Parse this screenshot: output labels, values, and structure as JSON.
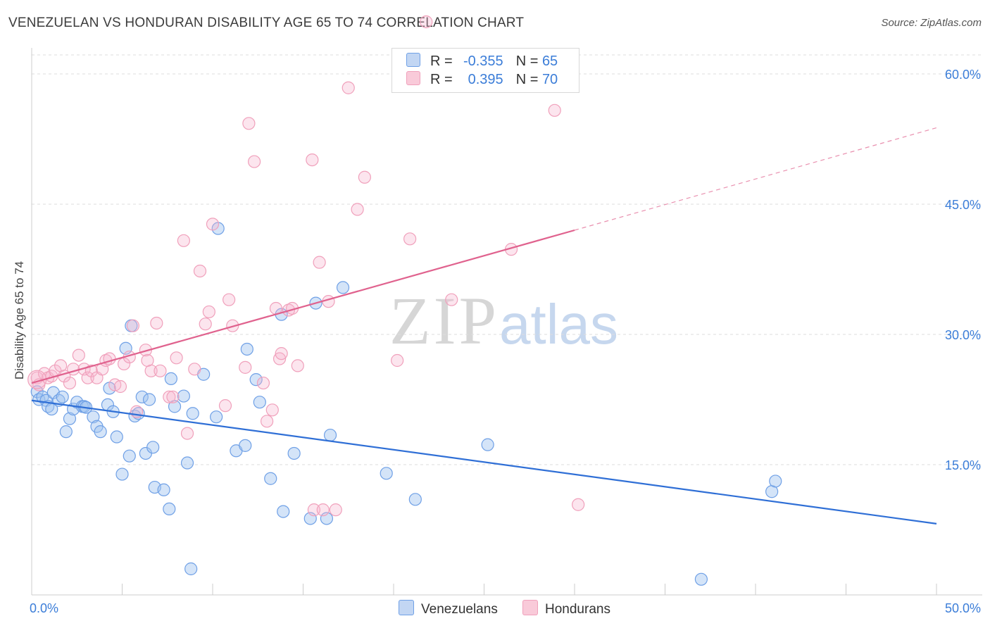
{
  "title": "VENEZUELAN VS HONDURAN DISABILITY AGE 65 TO 74 CORRELATION CHART",
  "source": "Source: ZipAtlas.com",
  "watermark": {
    "zip": "ZIP",
    "atlas": "atlas"
  },
  "legend": {
    "rows": [
      {
        "r_label": "R =",
        "r_value": "-0.355",
        "n_label": "N =",
        "n_value": "65"
      },
      {
        "r_label": "R =",
        "r_value": "0.395",
        "n_label": "N =",
        "n_value": "70"
      }
    ]
  },
  "bottom_legend": {
    "venezuelans": "Venezuelans",
    "hondurans": "Hondurans"
  },
  "chart_data": {
    "type": "scatter",
    "title": "VENEZUELAN VS HONDURAN DISABILITY AGE 65 TO 74 CORRELATION CHART",
    "xlabel": "",
    "ylabel": "Disability Age 65 to 74",
    "xlim": [
      0,
      50
    ],
    "ylim": [
      0,
      63
    ],
    "x_tick_labels": [
      "0.0%",
      "50.0%"
    ],
    "y_ticks": [
      15,
      30,
      45,
      60
    ],
    "y_tick_labels": [
      "15.0%",
      "30.0%",
      "45.0%",
      "60.0%"
    ],
    "grid": "horizontal dashed",
    "legend_position": "top-center",
    "colors": {
      "venezuelans": "#6fa0e6",
      "hondurans": "#f0a0bb",
      "blue_line": "#2f6fd6",
      "pink_line": "#e0628e"
    },
    "series": [
      {
        "name": "Venezuelans",
        "color": "#6fa0e6",
        "trend": {
          "x0": 0,
          "y0": 22.4,
          "x1": 50,
          "y1": 8.2
        },
        "points": [
          [
            0.3,
            23.4
          ],
          [
            0.4,
            22.5
          ],
          [
            0.6,
            22.8
          ],
          [
            0.8,
            22.4
          ],
          [
            0.9,
            21.7
          ],
          [
            1.1,
            21.4
          ],
          [
            1.2,
            23.3
          ],
          [
            1.5,
            22.4
          ],
          [
            1.7,
            22.8
          ],
          [
            1.9,
            18.8
          ],
          [
            2.1,
            20.3
          ],
          [
            2.3,
            21.4
          ],
          [
            2.5,
            22.2
          ],
          [
            2.8,
            21.7
          ],
          [
            2.9,
            21.7
          ],
          [
            3.4,
            20.5
          ],
          [
            3.6,
            19.4
          ],
          [
            3.8,
            18.8
          ],
          [
            4.2,
            21.9
          ],
          [
            4.3,
            23.8
          ],
          [
            4.5,
            21.1
          ],
          [
            4.7,
            18.2
          ],
          [
            5.0,
            13.9
          ],
          [
            5.2,
            28.4
          ],
          [
            5.4,
            16.0
          ],
          [
            5.5,
            31.0
          ],
          [
            5.7,
            20.6
          ],
          [
            5.9,
            20.9
          ],
          [
            6.1,
            22.8
          ],
          [
            6.3,
            16.3
          ],
          [
            6.5,
            22.5
          ],
          [
            6.7,
            17.0
          ],
          [
            6.8,
            12.4
          ],
          [
            7.3,
            12.1
          ],
          [
            7.6,
            9.9
          ],
          [
            7.7,
            24.9
          ],
          [
            7.9,
            21.7
          ],
          [
            8.4,
            22.9
          ],
          [
            8.6,
            15.2
          ],
          [
            8.8,
            3.0
          ],
          [
            8.9,
            20.9
          ],
          [
            9.5,
            25.4
          ],
          [
            10.3,
            42.2
          ],
          [
            10.2,
            20.5
          ],
          [
            11.3,
            16.6
          ],
          [
            11.8,
            17.2
          ],
          [
            11.9,
            28.3
          ],
          [
            12.4,
            24.8
          ],
          [
            12.6,
            22.2
          ],
          [
            13.2,
            13.4
          ],
          [
            13.8,
            32.3
          ],
          [
            13.9,
            9.6
          ],
          [
            14.5,
            16.3
          ],
          [
            15.4,
            8.8
          ],
          [
            15.7,
            33.6
          ],
          [
            16.3,
            8.8
          ],
          [
            16.5,
            18.4
          ],
          [
            17.2,
            35.4
          ],
          [
            19.6,
            14.0
          ],
          [
            21.2,
            11.0
          ],
          [
            25.2,
            17.3
          ],
          [
            37.0,
            1.8
          ],
          [
            40.9,
            11.9
          ],
          [
            41.1,
            13.1
          ],
          [
            3.0,
            21.6
          ]
        ]
      },
      {
        "name": "Hondurans",
        "color": "#f0a0bb",
        "trend": {
          "x0": 0,
          "y0": 24.4,
          "x1": 30,
          "y1": 42.0
        },
        "trend_dashed": {
          "x0": 30,
          "y0": 42.0,
          "x1": 50,
          "y1": 53.8
        },
        "points": [
          [
            0.3,
            25.0
          ],
          [
            0.4,
            24.2
          ],
          [
            0.7,
            25.5
          ],
          [
            0.9,
            25.0
          ],
          [
            1.1,
            25.2
          ],
          [
            1.3,
            25.8
          ],
          [
            1.6,
            26.4
          ],
          [
            1.8,
            25.2
          ],
          [
            2.1,
            24.4
          ],
          [
            2.3,
            26.0
          ],
          [
            2.6,
            27.6
          ],
          [
            2.9,
            26.0
          ],
          [
            3.1,
            25.0
          ],
          [
            3.3,
            25.8
          ],
          [
            3.6,
            25.0
          ],
          [
            3.9,
            26.0
          ],
          [
            4.1,
            27.0
          ],
          [
            4.3,
            27.2
          ],
          [
            4.6,
            24.2
          ],
          [
            4.9,
            24.0
          ],
          [
            5.1,
            26.6
          ],
          [
            5.4,
            27.4
          ],
          [
            5.6,
            31.0
          ],
          [
            5.8,
            21.1
          ],
          [
            6.3,
            28.2
          ],
          [
            6.4,
            27.0
          ],
          [
            6.6,
            25.8
          ],
          [
            6.9,
            31.3
          ],
          [
            7.1,
            25.8
          ],
          [
            7.6,
            22.8
          ],
          [
            7.8,
            22.8
          ],
          [
            8.0,
            27.3
          ],
          [
            8.4,
            40.8
          ],
          [
            8.6,
            18.6
          ],
          [
            9.0,
            26.0
          ],
          [
            9.3,
            37.3
          ],
          [
            9.6,
            31.2
          ],
          [
            9.8,
            32.6
          ],
          [
            10.0,
            42.7
          ],
          [
            10.7,
            21.8
          ],
          [
            10.9,
            34.0
          ],
          [
            11.1,
            31.0
          ],
          [
            11.8,
            26.2
          ],
          [
            12.0,
            54.3
          ],
          [
            12.3,
            49.9
          ],
          [
            12.8,
            24.4
          ],
          [
            13.0,
            20.0
          ],
          [
            13.3,
            21.3
          ],
          [
            13.7,
            27.2
          ],
          [
            13.8,
            27.8
          ],
          [
            14.2,
            32.8
          ],
          [
            14.4,
            33.0
          ],
          [
            14.7,
            26.4
          ],
          [
            15.5,
            50.1
          ],
          [
            15.6,
            9.8
          ],
          [
            15.9,
            38.3
          ],
          [
            16.1,
            9.8
          ],
          [
            16.4,
            33.8
          ],
          [
            16.8,
            9.8
          ],
          [
            17.5,
            58.4
          ],
          [
            18.0,
            44.4
          ],
          [
            18.4,
            48.1
          ],
          [
            20.2,
            27.0
          ],
          [
            20.9,
            41.0
          ],
          [
            21.8,
            66.0
          ],
          [
            23.2,
            34.0
          ],
          [
            26.5,
            39.8
          ],
          [
            28.9,
            55.8
          ],
          [
            30.2,
            10.4
          ],
          [
            13.5,
            33.0
          ]
        ]
      }
    ]
  }
}
